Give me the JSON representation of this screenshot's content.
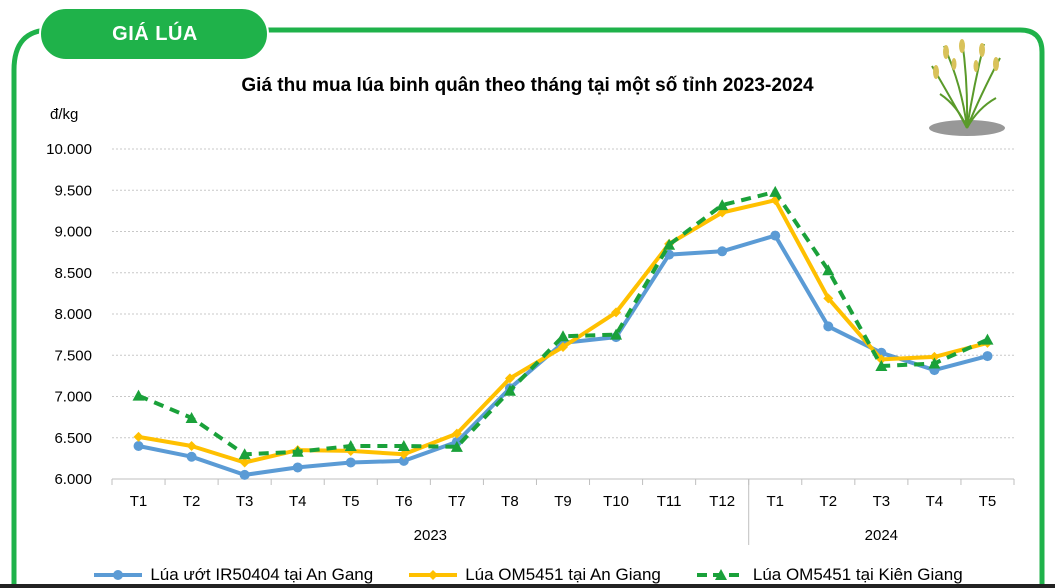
{
  "header": {
    "tab_label": "GIÁ LÚA"
  },
  "colors": {
    "frame": "#1fb24a",
    "series_blue": "#5b9bd5",
    "series_yellow": "#ffc000",
    "series_green": "#1aa13a"
  },
  "chart_data": {
    "type": "line",
    "title": "Giá thu mua lúa binh quân theo tháng tại một số tỉnh 2023-2024",
    "ylabel": "đ/kg",
    "ylim": [
      6000,
      10000
    ],
    "yticks": [
      "6.000",
      "6.500",
      "7.000",
      "7.500",
      "8.000",
      "8.500",
      "9.000",
      "9.500",
      "10.000"
    ],
    "categories": [
      "T1",
      "T2",
      "T3",
      "T4",
      "T5",
      "T6",
      "T7",
      "T8",
      "T9",
      "T10",
      "T11",
      "T12",
      "T1",
      "T2",
      "T3",
      "T4",
      "T5"
    ],
    "groups": [
      {
        "label": "2023",
        "start": 0,
        "end": 11
      },
      {
        "label": "2024",
        "start": 12,
        "end": 16
      }
    ],
    "grid": true,
    "legend_position": "bottom",
    "series": [
      {
        "name": "Lúa ướt IR50404 tại An Gang",
        "color": "#5b9bd5",
        "style": "solid",
        "marker": "circle",
        "values": [
          6400,
          6270,
          6050,
          6140,
          6200,
          6220,
          6450,
          7100,
          7650,
          7720,
          8720,
          8760,
          8950,
          7850,
          7530,
          7320,
          7490
        ]
      },
      {
        "name": "Lúa OM5451 tại An Giang",
        "color": "#ffc000",
        "style": "solid",
        "marker": "diamond",
        "values": [
          6510,
          6400,
          6200,
          6350,
          6340,
          6300,
          6550,
          7220,
          7600,
          8020,
          8850,
          9230,
          9380,
          8190,
          7450,
          7480,
          7650
        ]
      },
      {
        "name": "Lúa OM5451 tại Kiên Giang",
        "color": "#1aa13a",
        "style": "dashed",
        "marker": "triangle",
        "values": [
          7010,
          6740,
          6300,
          6330,
          6400,
          6400,
          6390,
          7070,
          7730,
          7750,
          8840,
          9320,
          9480,
          8530,
          7370,
          7400,
          7690
        ]
      }
    ]
  }
}
